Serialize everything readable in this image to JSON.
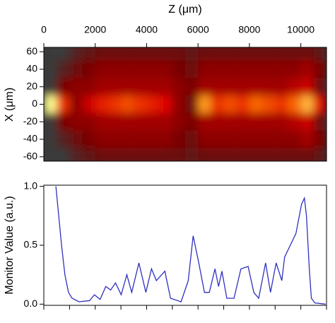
{
  "chart_data": [
    {
      "type": "heatmap",
      "x_label": "Z (μm)",
      "y_label": "X (μm)",
      "xlim": [
        0,
        11000
      ],
      "xticks": [
        0,
        2000,
        4000,
        6000,
        8000,
        10000
      ],
      "ylim": [
        -65,
        65
      ],
      "yticks": [
        60,
        40,
        20,
        0,
        -20,
        -40,
        -60
      ],
      "colormap": [
        "#3a3a3a",
        "#7a0000",
        "#e00000",
        "#ff8000",
        "#ffff90"
      ],
      "x": [
        250,
        750,
        1250,
        1750,
        2250,
        2750,
        3250,
        3750,
        4250,
        4750,
        5250,
        5750,
        6250,
        6750,
        7250,
        7750,
        8250,
        8750,
        9250,
        9750,
        10250,
        10750
      ],
      "y": [
        60,
        40,
        20,
        0,
        -20,
        -40,
        -60
      ],
      "z": [
        [
          0,
          0,
          0.1,
          0.15,
          0.2,
          0.2,
          0.2,
          0.2,
          0.2,
          0.2,
          0.2,
          0.15,
          0.2,
          0.2,
          0.2,
          0.2,
          0.2,
          0.2,
          0.2,
          0.2,
          0.2,
          0.15
        ],
        [
          0,
          0.1,
          0.2,
          0.25,
          0.3,
          0.3,
          0.3,
          0.3,
          0.3,
          0.3,
          0.25,
          0.2,
          0.3,
          0.3,
          0.3,
          0.3,
          0.3,
          0.3,
          0.3,
          0.3,
          0.35,
          0.25
        ],
        [
          0,
          0.25,
          0.3,
          0.3,
          0.35,
          0.35,
          0.35,
          0.35,
          0.35,
          0.35,
          0.3,
          0.25,
          0.35,
          0.35,
          0.35,
          0.35,
          0.35,
          0.35,
          0.35,
          0.4,
          0.45,
          0.2
        ],
        [
          1.0,
          0.6,
          0.3,
          0.45,
          0.55,
          0.6,
          0.65,
          0.6,
          0.55,
          0.5,
          0.3,
          0.2,
          0.8,
          0.6,
          0.65,
          0.6,
          0.7,
          0.65,
          0.6,
          0.7,
          0.85,
          0.5
        ],
        [
          0,
          0.25,
          0.3,
          0.3,
          0.35,
          0.35,
          0.35,
          0.35,
          0.35,
          0.35,
          0.3,
          0.25,
          0.35,
          0.35,
          0.35,
          0.35,
          0.35,
          0.35,
          0.35,
          0.4,
          0.45,
          0.2
        ],
        [
          0,
          0.1,
          0.2,
          0.25,
          0.3,
          0.3,
          0.3,
          0.3,
          0.3,
          0.3,
          0.25,
          0.2,
          0.3,
          0.3,
          0.3,
          0.3,
          0.3,
          0.3,
          0.3,
          0.3,
          0.35,
          0.25
        ],
        [
          0,
          0,
          0.1,
          0.15,
          0.2,
          0.2,
          0.2,
          0.2,
          0.2,
          0.2,
          0.2,
          0.15,
          0.2,
          0.2,
          0.2,
          0.2,
          0.2,
          0.2,
          0.2,
          0.2,
          0.2,
          0.15
        ]
      ]
    },
    {
      "type": "line",
      "y_label": "Monitor Value (a.u.)",
      "xlim": [
        0,
        11000
      ],
      "xticks": [
        0,
        1000,
        2000,
        3000,
        4000,
        5000,
        6000,
        7000,
        8000,
        9000,
        10000,
        11000
      ],
      "ylim": [
        -0.01,
        1.01
      ],
      "yticks": [
        {
          "value": 0,
          "label": "0.0"
        },
        0.5,
        {
          "value": 1,
          "label": "1.0"
        }
      ],
      "x": [
        470,
        690,
        820,
        960,
        1100,
        1370,
        1780,
        1970,
        2190,
        2410,
        2600,
        2790,
        3010,
        3230,
        3420,
        3700,
        3970,
        4190,
        4380,
        4710,
        4930,
        5340,
        5620,
        5810,
        6030,
        6250,
        6440,
        6660,
        6800,
        6930,
        7120,
        7400,
        7670,
        7950,
        8170,
        8360,
        8630,
        8820,
        9040,
        9260,
        9370,
        9590,
        9810,
        10030,
        10140,
        10220,
        10330,
        10410,
        10550,
        10960
      ],
      "series": [
        {
          "color": "#3030c0",
          "values": [
            1.0,
            0.5,
            0.25,
            0.1,
            0.05,
            0.02,
            0.03,
            0.08,
            0.04,
            0.15,
            0.12,
            0.18,
            0.08,
            0.25,
            0.1,
            0.35,
            0.1,
            0.3,
            0.2,
            0.28,
            0.05,
            0.02,
            0.2,
            0.58,
            0.35,
            0.1,
            0.1,
            0.3,
            0.15,
            0.28,
            0.05,
            0.05,
            0.3,
            0.32,
            0.1,
            0.05,
            0.35,
            0.1,
            0.35,
            0.2,
            0.4,
            0.5,
            0.6,
            0.85,
            0.9,
            0.75,
            0.3,
            0.05,
            0.01,
            0.0
          ]
        }
      ]
    }
  ]
}
